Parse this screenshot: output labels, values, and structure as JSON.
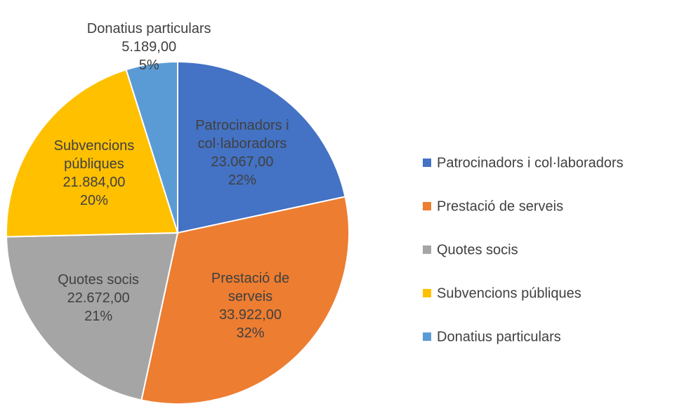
{
  "chart_data": {
    "type": "pie",
    "categories": [
      "Patrocinadors i col·laboradors",
      "Prestació de serveis",
      "Quotes socis",
      "Subvencions públiques",
      "Donatius particulars"
    ],
    "values": [
      23067,
      33922,
      22672,
      21884,
      5189
    ],
    "value_labels": [
      "23.067,00",
      "33.922,00",
      "22.672,00",
      "21.884,00",
      "5.189,00"
    ],
    "percent_labels": [
      "22%",
      "32%",
      "21%",
      "20%",
      "5%"
    ],
    "colors": [
      "#4472c4",
      "#ed7d31",
      "#a5a5a5",
      "#ffc000",
      "#5b9bd5"
    ],
    "legend": "right"
  }
}
